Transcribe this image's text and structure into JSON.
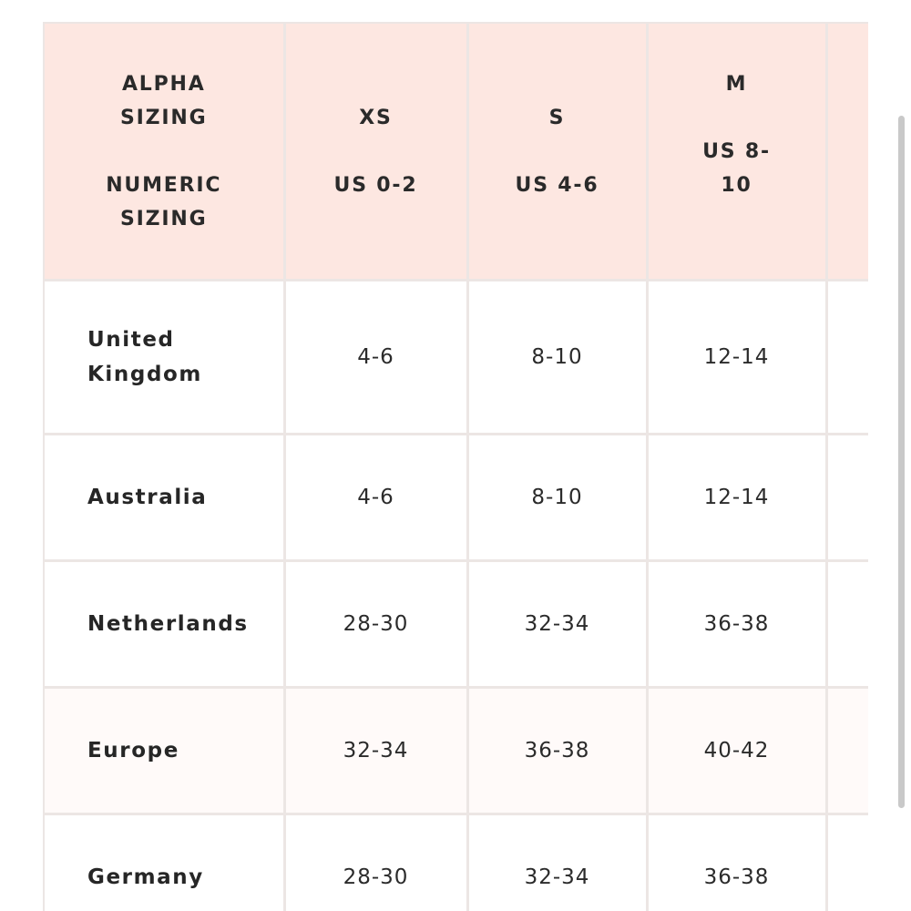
{
  "table": {
    "header": {
      "corner": {
        "top_line1": "ALPHA",
        "top_line2": "SIZING",
        "bottom_line1": "NUMERIC",
        "bottom_line2": "SIZING"
      },
      "columns": [
        {
          "alpha": "XS",
          "numeric": "US 0-2"
        },
        {
          "alpha": "S",
          "numeric": "US 4-6"
        },
        {
          "alpha": "M",
          "numeric": "US 8-10"
        }
      ]
    },
    "rows": [
      {
        "country": "United Kingdom",
        "values": [
          "4-6",
          "8-10",
          "12-14"
        ]
      },
      {
        "country": "Australia",
        "values": [
          "4-6",
          "8-10",
          "12-14"
        ]
      },
      {
        "country": "Netherlands",
        "values": [
          "28-30",
          "32-34",
          "36-38"
        ]
      },
      {
        "country": "Europe",
        "values": [
          "32-34",
          "36-38",
          "40-42"
        ]
      },
      {
        "country": "Germany",
        "values": [
          "28-30",
          "32-34",
          "36-38"
        ]
      }
    ]
  },
  "colors": {
    "header_bg": "#fde7e1",
    "border": "#ece6e4",
    "row_alt_bg": "#fffaf9",
    "scrollbar": "#c9c9c9"
  }
}
